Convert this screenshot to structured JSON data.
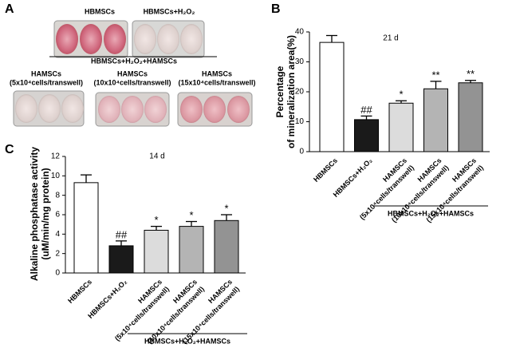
{
  "figure": {
    "panel": "A",
    "top_labels": [
      "HBMSCs",
      "HBMSCs+H₂O₂"
    ],
    "group_label": "HBMSCs+H₂O₂+HAMSCs",
    "hamsc_labels": [
      [
        "HAMSCs",
        "(5x10⁴cells/transwell)"
      ],
      [
        "HAMSCs",
        "(10x10⁴cells/transwell)"
      ],
      [
        "HAMSCs",
        "(15x10⁴cells/transwell)"
      ]
    ]
  },
  "chart_data": [
    {
      "type": "bar",
      "panel": "B",
      "annotation": "21 d",
      "y_label": [
        "Percentage",
        "of mineralization area(%)"
      ],
      "categories": [
        [
          "HBMSCs"
        ],
        [
          "HBMSCs+H₂O₂"
        ],
        [
          "HAMSCs",
          "(5x10⁴cells/transwell)"
        ],
        [
          "HAMSCs",
          "(10x10⁴cells/transwell)"
        ],
        [
          "HAMSCs",
          "(15x10⁴cells/transwell)"
        ]
      ],
      "values": [
        36.5,
        10.7,
        16.2,
        21,
        23
      ],
      "errors": [
        2.3,
        1.2,
        0.8,
        2.5,
        0.8
      ],
      "significance": [
        null,
        "##",
        "*",
        "**",
        "**"
      ],
      "colors": [
        "#ffffff",
        "#1a1a1a",
        "#dcdcdc",
        "#b4b4b4",
        "#939393"
      ],
      "group_label": "HBMSCs+H₂O₂+HAMSCs",
      "ylim": [
        0,
        40
      ],
      "yticks": [
        0,
        10,
        20,
        30,
        40
      ]
    },
    {
      "type": "bar",
      "panel": "C",
      "annotation": "14 d",
      "y_label": [
        "Alkaline phosphatase activity",
        "(uM/min/mg protein)"
      ],
      "categories": [
        [
          "HBMSCs"
        ],
        [
          "HBMSCs+H₂O₂"
        ],
        [
          "HAMSCs",
          "(5x10⁴cells/transwell)"
        ],
        [
          "HAMSCs",
          "(10x10⁴cells/transwell)"
        ],
        [
          "HAMSCs",
          "(15x10⁴cells/transwell)"
        ]
      ],
      "values": [
        9.3,
        2.8,
        4.4,
        4.8,
        5.4
      ],
      "errors": [
        0.8,
        0.5,
        0.4,
        0.5,
        0.6
      ],
      "significance": [
        null,
        "##",
        "*",
        "*",
        "*"
      ],
      "colors": [
        "#ffffff",
        "#1a1a1a",
        "#dcdcdc",
        "#b4b4b4",
        "#939393"
      ],
      "group_label": "HBMSCs+H₂O₂+HAMSCs",
      "ylim": [
        0,
        12
      ],
      "yticks": [
        0,
        2,
        4,
        6,
        8,
        10,
        12
      ]
    }
  ]
}
